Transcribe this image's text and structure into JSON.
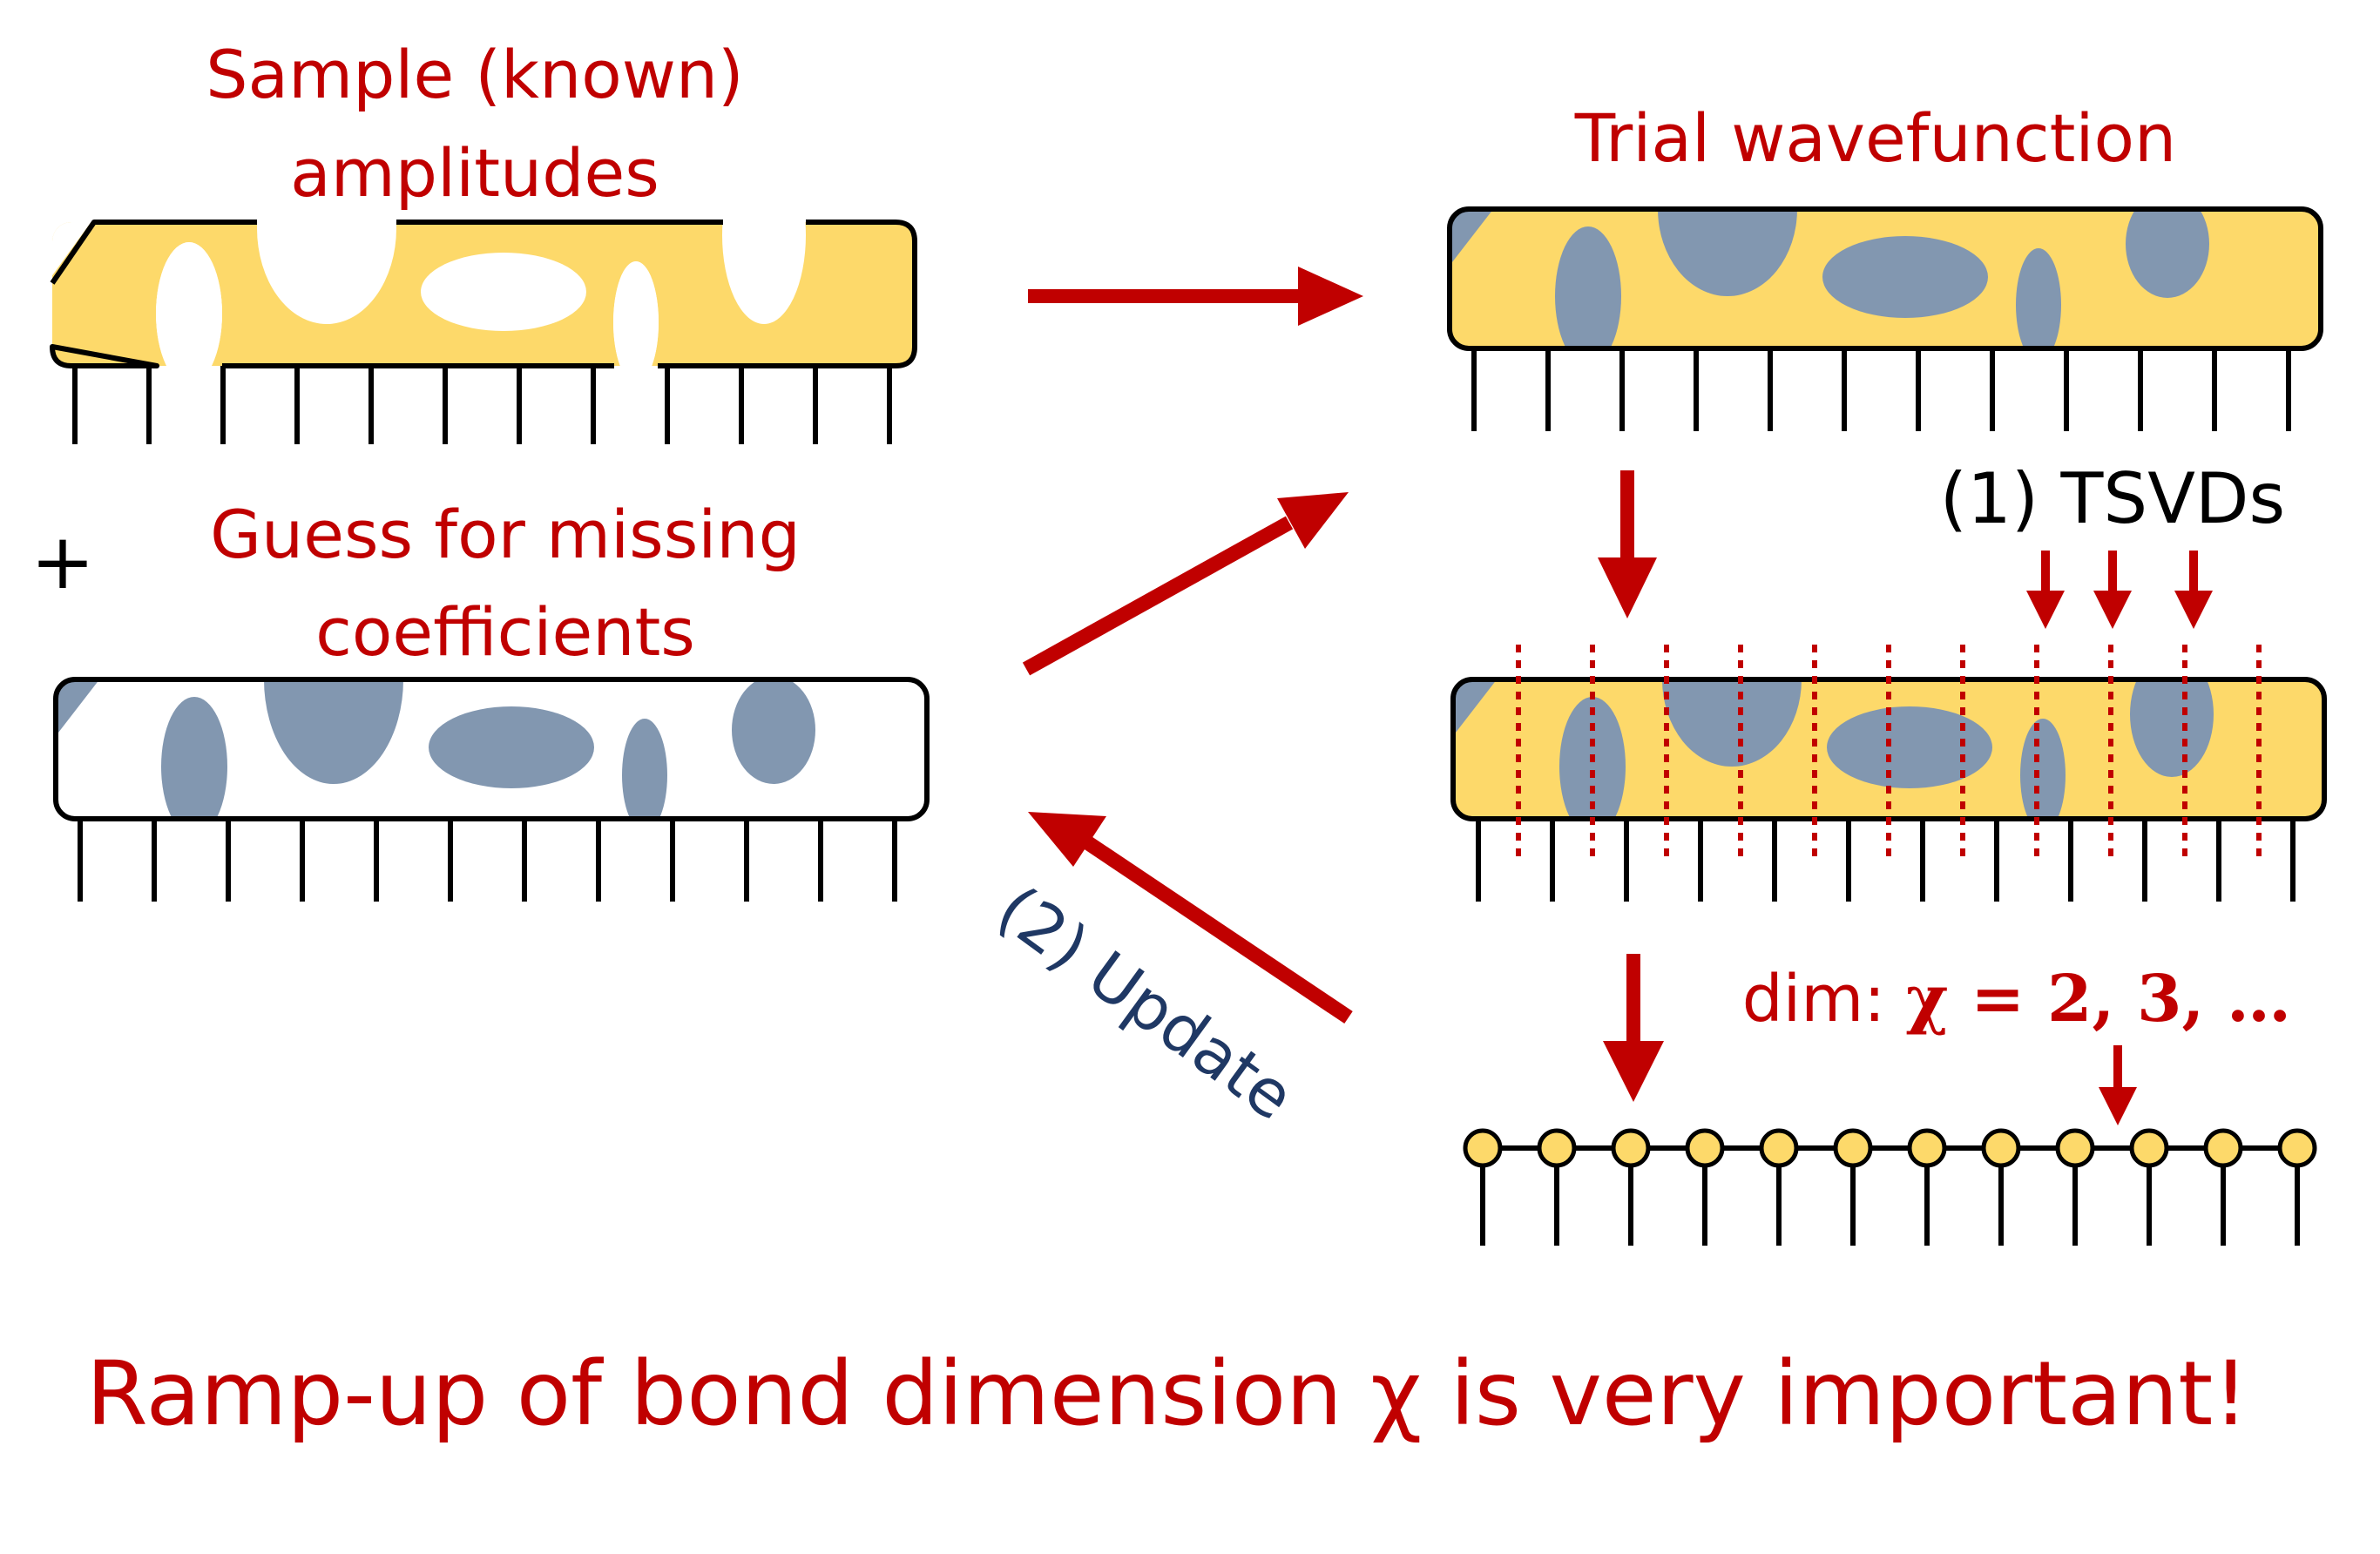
{
  "labels": {
    "sample_line1": "Sample (known)",
    "sample_line2": "amplitudes",
    "plus": "+",
    "guess_line1": "Guess for missing",
    "guess_line2": "coefficients",
    "trial": "Trial wavefunction",
    "tsvd": "(1) TSVDs",
    "update": "(2) Update",
    "dim_prefix": "dim: ",
    "dim_formula": "χ = 2, 3, …",
    "footer": "Ramp-up of bond dimension χ is very important!"
  },
  "colors": {
    "tensor_fill": "#fdd96a",
    "blob_fill": "#8297b0",
    "arrow": "#c00000",
    "text_red": "#c00000",
    "text_navy": "#1f3864",
    "line": "#000000"
  }
}
